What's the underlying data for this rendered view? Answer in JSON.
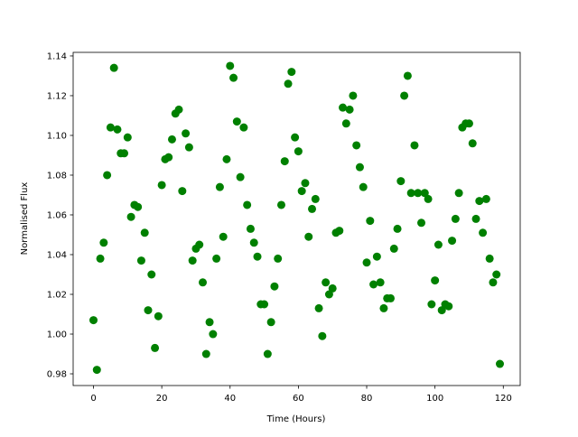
{
  "chart_data": {
    "type": "scatter",
    "xlabel": "Time (Hours)",
    "ylabel": "Normalised Flux",
    "x": [
      0,
      1,
      2,
      3,
      4,
      5,
      6,
      7,
      8,
      9,
      10,
      11,
      12,
      13,
      14,
      15,
      16,
      17,
      18,
      19,
      20,
      21,
      22,
      23,
      24,
      25,
      26,
      27,
      28,
      29,
      30,
      31,
      32,
      33,
      34,
      35,
      36,
      37,
      38,
      39,
      40,
      41,
      42,
      43,
      44,
      45,
      46,
      47,
      48,
      49,
      50,
      51,
      52,
      53,
      54,
      55,
      56,
      57,
      58,
      59,
      60,
      61,
      62,
      63,
      64,
      65,
      66,
      67,
      68,
      69,
      70,
      71,
      72,
      73,
      74,
      75,
      76,
      77,
      78,
      79,
      80,
      81,
      82,
      83,
      84,
      85,
      86,
      87,
      88,
      89,
      90,
      91,
      92,
      93,
      94,
      95,
      96,
      97,
      98,
      99,
      100,
      101,
      102,
      103,
      104,
      105,
      106,
      107,
      108,
      109,
      110,
      111,
      112,
      113,
      114,
      115,
      116,
      117,
      118,
      119
    ],
    "series": [
      {
        "color": "#008000",
        "values": [
          1.007,
          0.982,
          1.038,
          1.046,
          1.08,
          1.104,
          1.134,
          1.103,
          1.091,
          1.091,
          1.099,
          1.059,
          1.065,
          1.064,
          1.037,
          1.051,
          1.012,
          1.03,
          0.993,
          1.009,
          1.075,
          1.088,
          1.089,
          1.098,
          1.111,
          1.113,
          1.072,
          1.101,
          1.094,
          1.037,
          1.043,
          1.045,
          1.026,
          0.99,
          1.006,
          1.0,
          1.038,
          1.074,
          1.049,
          1.088,
          1.135,
          1.129,
          1.107,
          1.079,
          1.104,
          1.065,
          1.053,
          1.046,
          1.039,
          1.015,
          1.015,
          0.99,
          1.006,
          1.024,
          1.038,
          1.065,
          1.087,
          1.126,
          1.132,
          1.099,
          1.092,
          1.072,
          1.076,
          1.049,
          1.063,
          1.068,
          1.013,
          0.999,
          1.026,
          1.02,
          1.023,
          1.051,
          1.052,
          1.114,
          1.106,
          1.113,
          1.12,
          1.095,
          1.084,
          1.074,
          1.036,
          1.057,
          1.025,
          1.039,
          1.026,
          1.013,
          1.018,
          1.018,
          1.043,
          1.053,
          1.077,
          1.12,
          1.13,
          1.071,
          1.095,
          1.071,
          1.056,
          1.071,
          1.068,
          1.015,
          1.027,
          1.045,
          1.012,
          1.015,
          1.014,
          1.047,
          1.058,
          1.071,
          1.104,
          1.106,
          1.106,
          1.096,
          1.058,
          1.067,
          1.051,
          1.068,
          1.038,
          1.026,
          1.03,
          0.985
        ]
      }
    ],
    "xlim": [
      -5.95,
      124.95
    ],
    "xticks": [
      0,
      20,
      40,
      60,
      80,
      100,
      120
    ],
    "ylim": [
      0.9741,
      1.1418
    ],
    "yticks": [
      0.98,
      {
        "value": 1,
        "label": "1.00"
      },
      1.02,
      1.04,
      1.06,
      1.08,
      {
        "value": 1.1,
        "label": "1.10"
      },
      1.12,
      1.14
    ]
  }
}
